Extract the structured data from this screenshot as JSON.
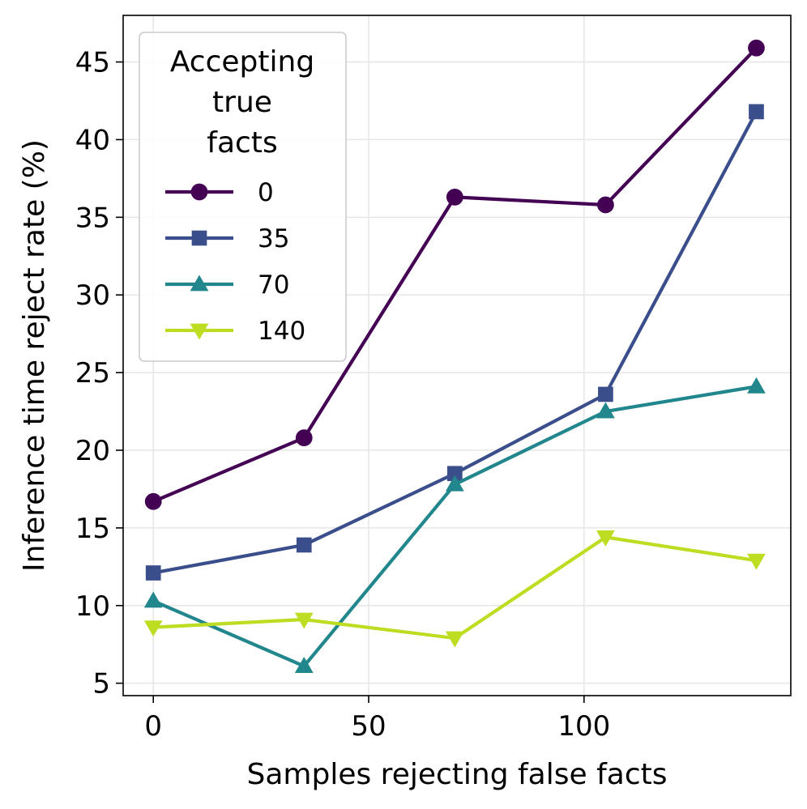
{
  "chart_data": {
    "type": "line",
    "xlabel": "Samples rejecting false facts",
    "ylabel": "Inference time reject rate (%)",
    "x": [
      0,
      35,
      70,
      105,
      140
    ],
    "xticks": [
      0,
      50,
      100
    ],
    "yticks": [
      5,
      10,
      15,
      20,
      25,
      30,
      35,
      40,
      45
    ],
    "xlim": [
      -7,
      148
    ],
    "ylim": [
      4.2,
      48
    ],
    "grid": true,
    "legend_title": [
      "Accepting",
      "true",
      "facts"
    ],
    "legend_position": "top-left",
    "series": [
      {
        "name": "0",
        "values": [
          16.7,
          20.8,
          36.3,
          35.8,
          45.9
        ],
        "color": "#440154",
        "marker": "circle"
      },
      {
        "name": "35",
        "values": [
          12.1,
          13.9,
          18.5,
          23.6,
          41.8
        ],
        "color": "#3b4e8c",
        "marker": "square"
      },
      {
        "name": "70",
        "values": [
          10.3,
          6.1,
          17.8,
          22.5,
          24.1
        ],
        "color": "#21878d",
        "marker": "triangle-up"
      },
      {
        "name": "140",
        "values": [
          8.6,
          9.1,
          7.9,
          14.4,
          12.9
        ],
        "color": "#bcdd22",
        "marker": "triangle-down"
      }
    ]
  }
}
